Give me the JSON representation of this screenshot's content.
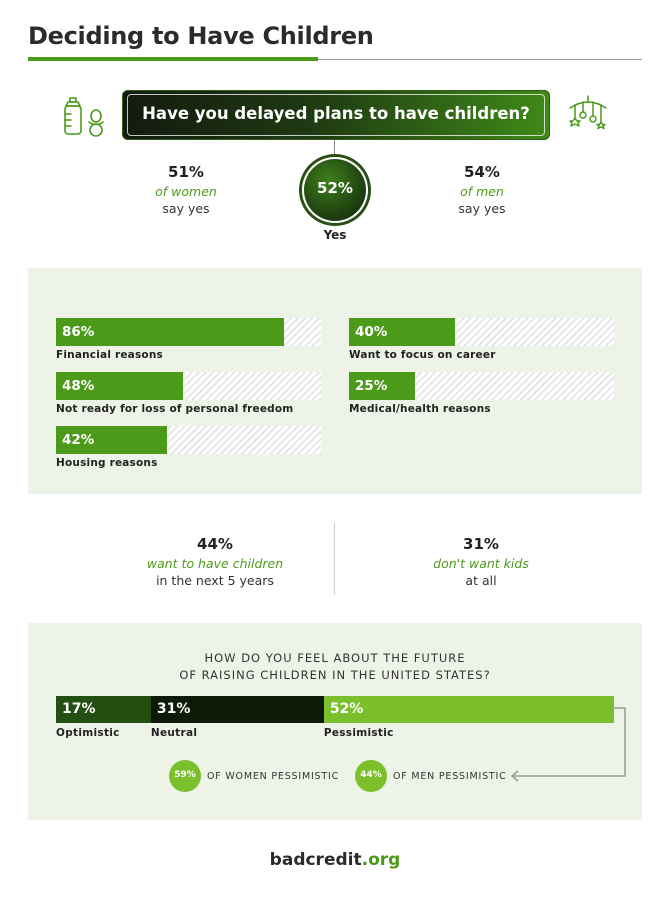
{
  "header": {
    "title": "Deciding to Have Children"
  },
  "question1": {
    "text": "Have you delayed plans to have children?",
    "overall_pct": "52%",
    "overall_label": "Yes",
    "women": {
      "pct": "51%",
      "group": "of women",
      "sub": "say yes"
    },
    "men": {
      "pct": "54%",
      "group": "of men",
      "sub": "say yes"
    }
  },
  "chart_data": [
    {
      "type": "bar",
      "categories": [
        "Financial reasons",
        "Want to focus on career",
        "Not ready for loss of personal freedom",
        "Medical/health reasons",
        "Housing reasons"
      ],
      "values": [
        86,
        40,
        48,
        25,
        42
      ],
      "labels": [
        "86%",
        "40%",
        "48%",
        "25%",
        "42%"
      ],
      "xlim": [
        0,
        100
      ],
      "colors": {
        "fill": "#4c9a1a",
        "remainder": "hatched-grey"
      }
    },
    {
      "type": "bar",
      "stacked": true,
      "title_lines": [
        "HOW DO YOU FEEL ABOUT THE FUTURE",
        "OF RAISING CHILDREN IN THE UNITED STATES?"
      ],
      "categories": [
        "Optimistic",
        "Neutral",
        "Pessimistic"
      ],
      "values": [
        17,
        31,
        52
      ],
      "labels": [
        "17%",
        "31%",
        "52%"
      ],
      "colors": [
        "#234f12",
        "#0d1a08",
        "#7bbf2c"
      ]
    }
  ],
  "future_plans": {
    "want": {
      "pct": "44%",
      "em": "want to have children",
      "sub": "in the next 5 years"
    },
    "dont": {
      "pct": "31%",
      "em": "don't want kids",
      "sub": "at all"
    }
  },
  "pessimism": {
    "women": {
      "pct": "59%",
      "label": "OF WOMEN PESSIMISTIC"
    },
    "men": {
      "pct": "44%",
      "label": "OF MEN PESSIMISTIC"
    }
  },
  "footer": {
    "brand": "badcredit",
    "tld": ".org"
  },
  "icons": [
    "baby-bottle-icon",
    "pacifier-icon",
    "baby-mobile-icon",
    "arrow-left-icon"
  ]
}
